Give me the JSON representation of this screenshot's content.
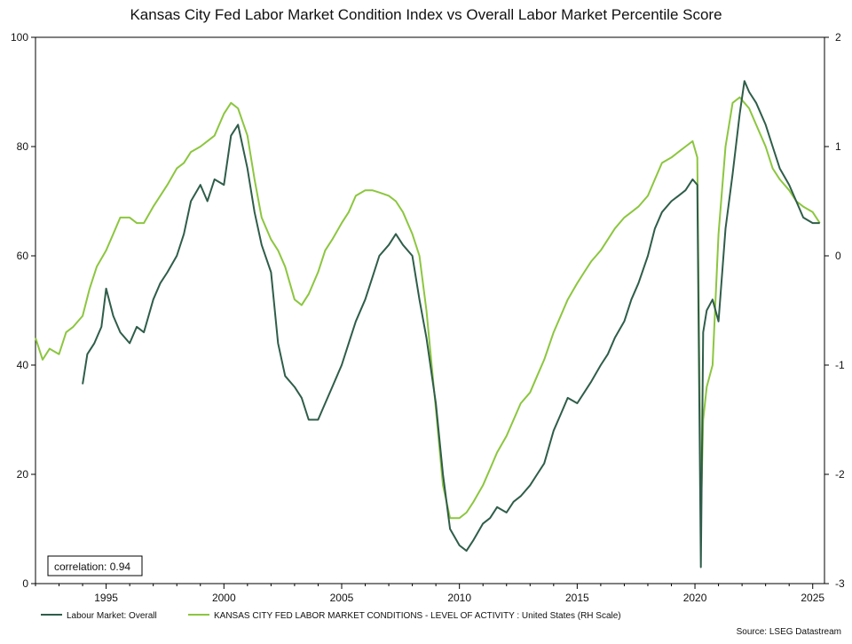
{
  "chart_data": {
    "type": "line",
    "title": "Kansas City Fed Labor Market Condition Index vs Overall Labor Market Percentile Score",
    "source": "Source: LSEG Datastream",
    "annotation": "correlation: 0.94",
    "x_ticks": [
      "1995",
      "2000",
      "2005",
      "2010",
      "2015",
      "2020",
      "2025"
    ],
    "x_tick_values": [
      1995,
      2000,
      2005,
      2010,
      2015,
      2020,
      2025
    ],
    "x_range": [
      1992,
      2025.5
    ],
    "y_left": {
      "ticks": [
        "100",
        "80",
        "60",
        "40",
        "20",
        "0"
      ],
      "tick_values": [
        100,
        80,
        60,
        40,
        20,
        0
      ],
      "range": [
        0,
        100
      ]
    },
    "y_right": {
      "ticks": [
        "2",
        "1",
        "0",
        "-1",
        "-2",
        "-3"
      ],
      "tick_values": [
        2,
        1,
        0,
        -1,
        -2,
        -3
      ],
      "range": [
        -3,
        2
      ]
    },
    "grid": false,
    "legend_position": "bottom-left",
    "series": [
      {
        "name": "Labour Market: Overall",
        "axis": "left",
        "color": "#2f5d4a",
        "x": [
          1994.0,
          1994.2,
          1994.5,
          1994.8,
          1995.0,
          1995.3,
          1995.6,
          1996.0,
          1996.3,
          1996.6,
          1997.0,
          1997.3,
          1997.6,
          1998.0,
          1998.3,
          1998.6,
          1999.0,
          1999.3,
          1999.6,
          2000.0,
          2000.3,
          2000.6,
          2001.0,
          2001.3,
          2001.6,
          2002.0,
          2002.3,
          2002.6,
          2003.0,
          2003.3,
          2003.6,
          2004.0,
          2004.3,
          2004.6,
          2005.0,
          2005.3,
          2005.6,
          2006.0,
          2006.3,
          2006.6,
          2007.0,
          2007.3,
          2007.6,
          2008.0,
          2008.3,
          2008.6,
          2009.0,
          2009.3,
          2009.6,
          2010.0,
          2010.3,
          2010.6,
          2011.0,
          2011.3,
          2011.6,
          2012.0,
          2012.3,
          2012.6,
          2013.0,
          2013.3,
          2013.6,
          2014.0,
          2014.3,
          2014.6,
          2015.0,
          2015.3,
          2015.6,
          2016.0,
          2016.3,
          2016.6,
          2017.0,
          2017.3,
          2017.6,
          2018.0,
          2018.3,
          2018.6,
          2019.0,
          2019.3,
          2019.6,
          2019.9,
          2020.1,
          2020.25,
          2020.35,
          2020.5,
          2020.75,
          2021.0,
          2021.3,
          2021.6,
          2021.9,
          2022.1,
          2022.3,
          2022.6,
          2023.0,
          2023.3,
          2023.6,
          2024.0,
          2024.3,
          2024.6,
          2025.0,
          2025.3
        ],
        "values": [
          36.5,
          42,
          44,
          47,
          54,
          49,
          46,
          44,
          47,
          46,
          52,
          55,
          57,
          60,
          64,
          70,
          73,
          70,
          74,
          73,
          82,
          84,
          76,
          68,
          62,
          57,
          44,
          38,
          36,
          34,
          30,
          30,
          33,
          36,
          40,
          44,
          48,
          52,
          56,
          60,
          62,
          64,
          62,
          60,
          52,
          45,
          33,
          20,
          10,
          7,
          6,
          8,
          11,
          12,
          14,
          13,
          15,
          16,
          18,
          20,
          22,
          28,
          31,
          34,
          33,
          35,
          37,
          40,
          42,
          45,
          48,
          52,
          55,
          60,
          65,
          68,
          70,
          71,
          72,
          74,
          73,
          3,
          46,
          50,
          52,
          48,
          65,
          75,
          86,
          92,
          90,
          88,
          84,
          80,
          76,
          73,
          70,
          67,
          66,
          66
        ]
      },
      {
        "name": "KANSAS CITY FED LABOR MARKET CONDITIONS - LEVEL OF ACTIVITY : United States (RH Scale)",
        "axis": "right",
        "color": "#8cc63f",
        "x": [
          1992.0,
          1992.3,
          1992.6,
          1993.0,
          1993.3,
          1993.6,
          1994.0,
          1994.3,
          1994.6,
          1995.0,
          1995.3,
          1995.6,
          1996.0,
          1996.3,
          1996.6,
          1997.0,
          1997.3,
          1997.6,
          1998.0,
          1998.3,
          1998.6,
          1999.0,
          1999.3,
          1999.6,
          2000.0,
          2000.3,
          2000.6,
          2001.0,
          2001.3,
          2001.6,
          2002.0,
          2002.3,
          2002.6,
          2003.0,
          2003.3,
          2003.6,
          2004.0,
          2004.3,
          2004.6,
          2005.0,
          2005.3,
          2005.6,
          2006.0,
          2006.3,
          2006.6,
          2007.0,
          2007.3,
          2007.6,
          2008.0,
          2008.3,
          2008.6,
          2009.0,
          2009.3,
          2009.6,
          2010.0,
          2010.3,
          2010.6,
          2011.0,
          2011.3,
          2011.6,
          2012.0,
          2012.3,
          2012.6,
          2013.0,
          2013.3,
          2013.6,
          2014.0,
          2014.3,
          2014.6,
          2015.0,
          2015.3,
          2015.6,
          2016.0,
          2016.3,
          2016.6,
          2017.0,
          2017.3,
          2017.6,
          2018.0,
          2018.3,
          2018.6,
          2019.0,
          2019.3,
          2019.6,
          2019.9,
          2020.1,
          2020.25,
          2020.35,
          2020.5,
          2020.75,
          2021.0,
          2021.3,
          2021.6,
          2021.9,
          2022.1,
          2022.3,
          2022.6,
          2023.0,
          2023.3,
          2023.6,
          2024.0,
          2024.3,
          2024.6,
          2025.0,
          2025.3
        ],
        "values": [
          -0.75,
          -0.95,
          -0.85,
          -0.9,
          -0.7,
          -0.65,
          -0.55,
          -0.3,
          -0.1,
          0.05,
          0.2,
          0.35,
          0.35,
          0.3,
          0.3,
          0.45,
          0.55,
          0.65,
          0.8,
          0.85,
          0.95,
          1.0,
          1.05,
          1.1,
          1.3,
          1.4,
          1.35,
          1.1,
          0.7,
          0.35,
          0.15,
          0.05,
          -0.1,
          -0.4,
          -0.45,
          -0.35,
          -0.15,
          0.05,
          0.15,
          0.3,
          0.4,
          0.55,
          0.6,
          0.6,
          0.58,
          0.55,
          0.5,
          0.4,
          0.2,
          0.0,
          -0.5,
          -1.4,
          -2.1,
          -2.4,
          -2.4,
          -2.35,
          -2.25,
          -2.1,
          -1.95,
          -1.8,
          -1.65,
          -1.5,
          -1.35,
          -1.25,
          -1.1,
          -0.95,
          -0.7,
          -0.55,
          -0.4,
          -0.25,
          -0.15,
          -0.05,
          0.05,
          0.15,
          0.25,
          0.35,
          0.4,
          0.45,
          0.55,
          0.7,
          0.85,
          0.9,
          0.95,
          1.0,
          1.05,
          0.9,
          -2.4,
          -1.5,
          -1.2,
          -1.0,
          0.2,
          1.0,
          1.4,
          1.45,
          1.4,
          1.35,
          1.2,
          1.0,
          0.8,
          0.7,
          0.6,
          0.5,
          0.45,
          0.4,
          0.3
        ]
      }
    ]
  }
}
